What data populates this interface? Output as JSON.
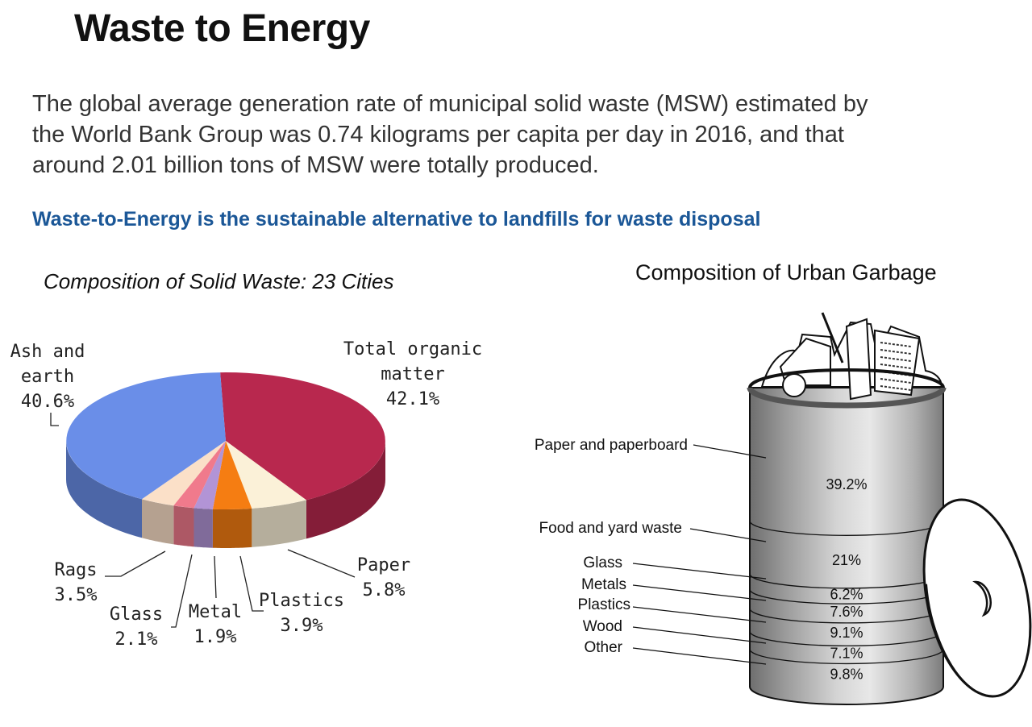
{
  "header": {
    "title": "Waste to Energy",
    "intro_lines": [
      "The global average generation rate of municipal solid waste (MSW) estimated by",
      "the World Bank Group was 0.74 kilograms per capita per day in 2016, and that",
      "around 2.01 billion tons of MSW were totally produced."
    ],
    "subheading": "Waste-to-Energy is the sustainable alternative to landfills for waste disposal"
  },
  "chart_data": [
    {
      "type": "pie",
      "title": "Composition of Solid Waste: 23 Cities",
      "slices": [
        {
          "name": "Total organic matter",
          "label_lines": [
            "Total organic",
            "matter",
            "42.1%"
          ],
          "value": 42.1,
          "color": "#b8284e"
        },
        {
          "name": "Paper",
          "label_lines": [
            "Paper",
            "5.8%"
          ],
          "value": 5.8,
          "color": "#fbf1d8"
        },
        {
          "name": "Plastics",
          "label_lines": [
            "Plastics",
            "3.9%"
          ],
          "value": 3.9,
          "color": "#f57d12"
        },
        {
          "name": "Metal",
          "label_lines": [
            "Metal",
            "1.9%"
          ],
          "value": 1.9,
          "color": "#b294d6"
        },
        {
          "name": "Glass",
          "label_lines": [
            "Glass",
            "2.1%"
          ],
          "value": 2.1,
          "color": "#f07a8c"
        },
        {
          "name": "Rags",
          "label_lines": [
            "Rags",
            "3.5%"
          ],
          "value": 3.5,
          "color": "#fbe0c8"
        },
        {
          "name": "Ash and earth",
          "label_lines": [
            "Ash and",
            "earth",
            "40.6%"
          ],
          "value": 40.6,
          "color": "#6a8ee8"
        }
      ],
      "legend": "none"
    },
    {
      "type": "table",
      "title": "Composition of Urban Garbage",
      "categories": [
        "Paper and paperboard",
        "Food and yard waste",
        "Glass",
        "Metals",
        "Plastics",
        "Wood",
        "Other"
      ],
      "values": [
        39.2,
        21,
        6.2,
        7.6,
        9.1,
        7.1,
        9.8
      ],
      "value_labels": [
        "39.2%",
        "21%",
        "6.2%",
        "7.6%",
        "9.1%",
        "7.1%",
        "9.8%"
      ]
    }
  ]
}
